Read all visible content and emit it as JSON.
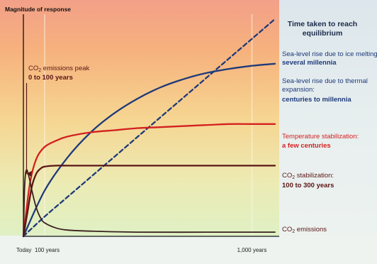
{
  "chart_data": {
    "type": "line",
    "ylabel": "Magnitude of response",
    "legend_title_line1": "Time taken to reach",
    "legend_title_line2": "equilibrium",
    "legend_placement": "right",
    "x_tick_labels": [
      "Today",
      "100 years",
      "1,000 years"
    ],
    "x_tick_positions_years": [
      0,
      100,
      1000
    ],
    "xlim_years": [
      0,
      1100
    ],
    "ylim": [
      0,
      100
    ],
    "grid": false,
    "annotation": {
      "line1_pre": "CO",
      "line1_sub": "2",
      "line1_post": " emissions peak",
      "line2": "0 to 100 years",
      "color": "#5a1616",
      "arrow_at_years": 15
    },
    "series": [
      {
        "key": "sea_ice",
        "label_line1": "Sea-level rise due to ice melting:",
        "label_line2": "several millennia",
        "color": "#1e3a7a",
        "dashed": true,
        "x": [
          0,
          100,
          200,
          300,
          400,
          500,
          600,
          700,
          800,
          900,
          1000,
          1100
        ],
        "y": [
          0,
          9.5,
          19,
          28.5,
          38,
          47.5,
          57,
          66.5,
          76,
          85.5,
          95,
          104.5
        ]
      },
      {
        "key": "sea_thermal",
        "label_line1": "Sea-level rise due to thermal",
        "label_line2": "expansion:",
        "label_line3": "centuries to millennia",
        "color": "#1e3a7a",
        "dashed": false,
        "x": [
          0,
          100,
          200,
          300,
          400,
          500,
          600,
          700,
          800,
          900,
          1000,
          1100
        ],
        "y": [
          0,
          22,
          38,
          50,
          59,
          66,
          71.5,
          75.5,
          78.5,
          80.5,
          82,
          83
        ]
      },
      {
        "key": "temperature",
        "label_line1": "Temperature stabilization:",
        "label_line2": "a few centuries",
        "color": "#d42020",
        "dashed": false,
        "x": [
          0,
          30,
          60,
          100,
          150,
          200,
          300,
          400,
          500,
          600,
          700,
          800,
          900,
          1000,
          1100
        ],
        "y": [
          0,
          25,
          37,
          43,
          46,
          48,
          50,
          51,
          52,
          52.5,
          53,
          53.5,
          54,
          54,
          54
        ]
      },
      {
        "key": "co2_stab",
        "label_line1_pre": "CO",
        "label_line1_sub": "2",
        "label_line1_post": " stabilization:",
        "label_line2": "100 to 300 years",
        "color": "#5a1616",
        "dashed": false,
        "x": [
          0,
          20,
          40,
          60,
          80,
          100,
          150,
          200,
          300,
          400,
          500,
          600,
          700,
          800,
          900,
          1000,
          1100
        ],
        "y": [
          0,
          12,
          24,
          30,
          32.5,
          33.5,
          34,
          34,
          34,
          34,
          34,
          34,
          34,
          34,
          34,
          34,
          34
        ]
      },
      {
        "key": "co2_emissions",
        "label_line1_pre": "CO",
        "label_line1_sub": "2",
        "label_line1_post": " emissions",
        "color": "#3a2020",
        "dashed": false,
        "x": [
          0,
          5,
          10,
          15,
          20,
          30,
          40,
          60,
          80,
          100,
          150,
          200,
          300,
          500,
          800,
          1100
        ],
        "y": [
          0,
          22,
          30,
          32,
          31,
          27,
          22,
          14,
          9,
          6.5,
          4,
          3,
          2.5,
          2,
          2,
          2
        ]
      }
    ]
  }
}
